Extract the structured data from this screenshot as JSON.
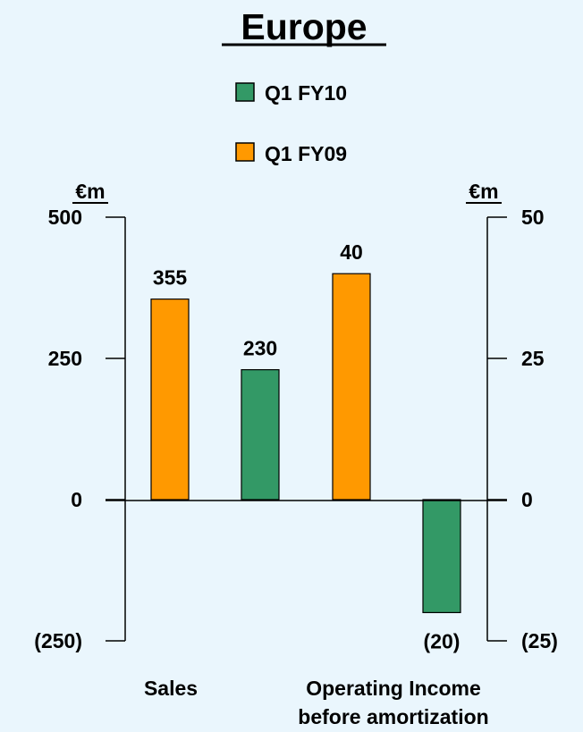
{
  "chart_data": {
    "type": "bar",
    "title": "Europe",
    "units": {
      "left": "€m",
      "right": "€m"
    },
    "left_axis": {
      "ylim": [
        -250,
        500
      ],
      "ticks": [
        500,
        250,
        0,
        -250
      ],
      "tick_labels": [
        "500",
        "250",
        "0",
        "(250)"
      ]
    },
    "right_axis": {
      "ylim": [
        -25,
        50
      ],
      "ticks": [
        50,
        25,
        0,
        -25
      ],
      "tick_labels": [
        "50",
        "25",
        "0",
        "(25)"
      ]
    },
    "legend": {
      "placement": "top-center",
      "entries": [
        {
          "label": "Q1 FY10",
          "color": "#339966"
        },
        {
          "label": "Q1 FY09",
          "color": "#ff9900"
        }
      ]
    },
    "categories": [
      "Sales",
      "Operating Income before amortization"
    ],
    "category_labels": [
      {
        "lines": [
          "Sales"
        ]
      },
      {
        "lines": [
          "Operating Income",
          "before amortization"
        ]
      }
    ],
    "bars": [
      {
        "category": "Sales",
        "series": "Q1 FY09",
        "axis": "left",
        "value": 355,
        "label": "355",
        "color": "#ff9900"
      },
      {
        "category": "Sales",
        "series": "Q1 FY10",
        "axis": "left",
        "value": 230,
        "label": "230",
        "color": "#339966"
      },
      {
        "category": "Operating Income before amortization",
        "series": "Q1 FY09",
        "axis": "right",
        "value": 40,
        "label": "40",
        "color": "#ff9900"
      },
      {
        "category": "Operating Income before amortization",
        "series": "Q1 FY10",
        "axis": "right",
        "value": -20,
        "label": "(20)",
        "color": "#339966"
      }
    ],
    "grid": false
  },
  "colors": {
    "background": "#eaf6fd",
    "q1_fy10": "#339966",
    "q1_fy09": "#ff9900"
  }
}
